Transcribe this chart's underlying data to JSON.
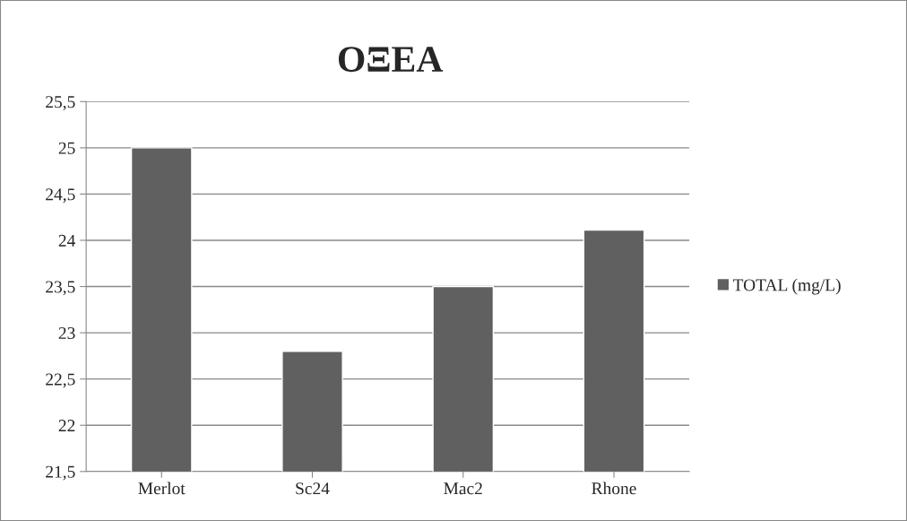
{
  "chart_data": {
    "type": "bar",
    "title": "ΟΞΕΑ",
    "categories": [
      "Merlot",
      "Sc24",
      "Mac2",
      "Rhone"
    ],
    "series": [
      {
        "name": "TOTAL (mg/L)",
        "color": "#606060",
        "values": [
          25,
          22.8,
          23.5,
          24.11
        ]
      }
    ],
    "ylim": [
      21.5,
      25.5
    ],
    "yticks": [
      {
        "value": 21.5,
        "label": "21,5"
      },
      22,
      {
        "value": 22.5,
        "label": "22,5"
      },
      23,
      {
        "value": 23.5,
        "label": "23,5"
      },
      24,
      {
        "value": 24.5,
        "label": "24,5"
      },
      25,
      {
        "value": 25.5,
        "label": "25,5"
      }
    ],
    "grid": "y",
    "legend": "right"
  }
}
